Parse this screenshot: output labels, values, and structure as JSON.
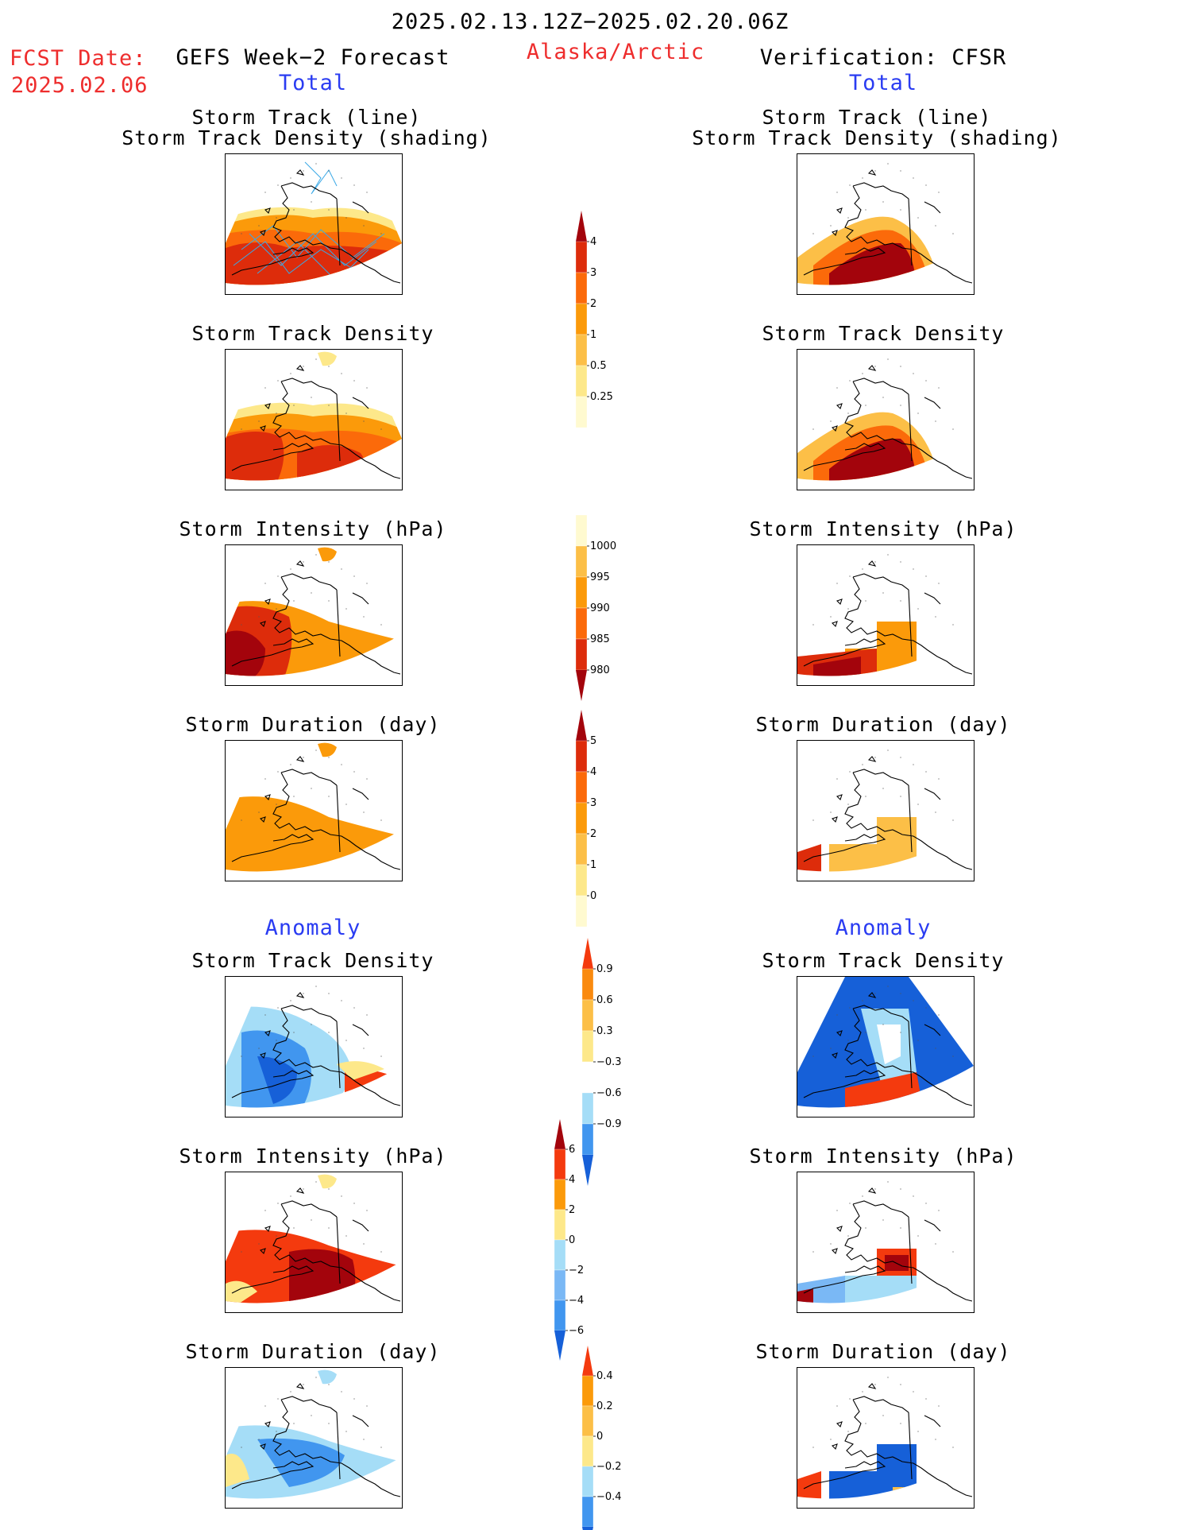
{
  "header": {
    "date_range": "2025.02.13.12Z−2025.02.20.06Z",
    "fcst_label": "FCST Date:",
    "fcst_date": "2025.02.06",
    "left_title": "GEFS Week−2 Forecast",
    "region": "Alaska/Arctic",
    "right_title": "Verification: CFSR",
    "total_left": "Total",
    "total_right": "Total"
  },
  "anomaly_left": "Anomaly",
  "anomaly_right": "Anomaly",
  "panel_titles": {
    "track_line": "Storm Track (line)",
    "track_shading": "Storm Track Density (shading)",
    "density": "Storm Track Density",
    "intensity": "Storm Intensity (hPa)",
    "duration": "Storm Duration (day)"
  },
  "colors": {
    "header_red": "#ee2d2d",
    "header_blue": "#2a3cf2",
    "track_line": "#3aa8e6"
  },
  "chart_data": [
    {
      "type": "heatmap",
      "title": "Storm Track Density",
      "units": "",
      "levels": [
        0.25,
        0.5,
        1,
        2,
        3,
        4
      ],
      "colors": [
        "#fffad0",
        "#fde88a",
        "#fcbf47",
        "#fb9a0a",
        "#fb6a0a",
        "#dd2c0b",
        "#a3040c"
      ]
    },
    {
      "type": "heatmap",
      "title": "Storm Intensity (hPa)",
      "units": "hPa",
      "levels": [
        980,
        985,
        990,
        995,
        1000
      ],
      "colors": [
        "#a3040c",
        "#dd2c0b",
        "#fb6a0a",
        "#fb9a0a",
        "#fcbf47",
        "#fffad0"
      ]
    },
    {
      "type": "heatmap",
      "title": "Storm Duration (day)",
      "units": "day",
      "levels": [
        0,
        1,
        2,
        3,
        4,
        5
      ],
      "colors": [
        "#fffad0",
        "#fde88a",
        "#fcbf47",
        "#fb9a0a",
        "#fb6a0a",
        "#dd2c0b",
        "#a3040c"
      ]
    },
    {
      "type": "heatmap",
      "title": "Storm Track Density anomaly",
      "units": "",
      "levels": [
        -0.9,
        -0.6,
        -0.3,
        0.3,
        0.6,
        0.9
      ],
      "colors": [
        "#1660d8",
        "#4196ef",
        "#a5ddf7",
        "#ffffff",
        "#fde88a",
        "#fcbf47",
        "#fa8a0f",
        "#f43a0e"
      ]
    },
    {
      "type": "heatmap",
      "title": "Storm Intensity anomaly (hPa)",
      "units": "hPa",
      "levels": [
        -6,
        -4,
        -2,
        0,
        2,
        4,
        6
      ],
      "colors": [
        "#1660d8",
        "#4196ef",
        "#7ab8f5",
        "#a5ddf7",
        "#fde88a",
        "#fb9a0a",
        "#f43a0e",
        "#a3040c"
      ]
    },
    {
      "type": "heatmap",
      "title": "Storm Duration anomaly (day)",
      "units": "day",
      "levels": [
        -0.4,
        -0.2,
        0,
        0.2,
        0.4
      ],
      "colors": [
        "#1660d8",
        "#4196ef",
        "#a5ddf7",
        "#fde88a",
        "#fcbf47",
        "#fb9a0a",
        "#f43a0e"
      ]
    }
  ]
}
